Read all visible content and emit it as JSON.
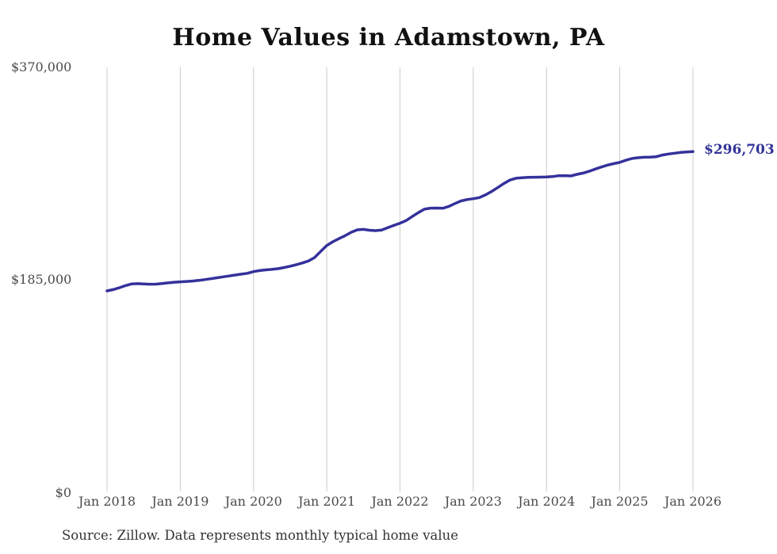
{
  "title": "Home Values in Adamstown, PA",
  "source_note": "Source: Zillow. Data represents monthly typical home value",
  "current_value_label": "$296,703",
  "colors": {
    "line": "#34319b",
    "current_value_text": "#333399",
    "gridline": "#cccccc",
    "title_text": "#111111",
    "axis_text": "#4a4a4a",
    "source_text": "#333333",
    "background": "#ffffff"
  },
  "chart_data": {
    "type": "line",
    "title": "Home Values in Adamstown, PA",
    "xlabel": "",
    "ylabel": "",
    "ylim": [
      0,
      370000
    ],
    "grid": "vertical-only",
    "legend_position": "none",
    "series_name": "Monthly typical home value (USD)",
    "x_start_month": "2018-01",
    "x_end_month": "2026-01",
    "x_tick_labels": [
      "Jan 2018",
      "Jan 2019",
      "Jan 2020",
      "Jan 2021",
      "Jan 2022",
      "Jan 2023",
      "Jan 2024",
      "Jan 2025",
      "Jan 2026"
    ],
    "y_ticks": [
      {
        "label": "$370,000",
        "value": 370000
      },
      {
        "label": "$185,000",
        "value": 185000
      },
      {
        "label": "$0",
        "value": 0
      }
    ],
    "end_annotation": {
      "label": "$296,703",
      "value": 296703
    },
    "values": [
      175500,
      176600,
      178200,
      180100,
      181500,
      181800,
      181600,
      181300,
      181400,
      181900,
      182500,
      183000,
      183400,
      183700,
      184100,
      184600,
      185300,
      186100,
      186900,
      187700,
      188500,
      189300,
      190100,
      190800,
      192300,
      193200,
      193800,
      194200,
      194800,
      195800,
      197000,
      198300,
      199800,
      201500,
      204500,
      209800,
      215000,
      218300,
      221000,
      223500,
      226500,
      228600,
      229000,
      228300,
      227900,
      228400,
      230500,
      232500,
      234400,
      236700,
      240200,
      243600,
      246600,
      247500,
      247600,
      247400,
      249000,
      251500,
      253800,
      255000,
      255700,
      256700,
      259000,
      262000,
      265400,
      268900,
      271900,
      273500,
      274000,
      274300,
      274400,
      274500,
      274600,
      275000,
      275700,
      275800,
      275500,
      276900,
      278000,
      279600,
      281500,
      283300,
      285000,
      286200,
      287300,
      289200,
      290700,
      291400,
      291800,
      291900,
      292300,
      293700,
      294600,
      295300,
      296000,
      296400,
      296703
    ]
  }
}
